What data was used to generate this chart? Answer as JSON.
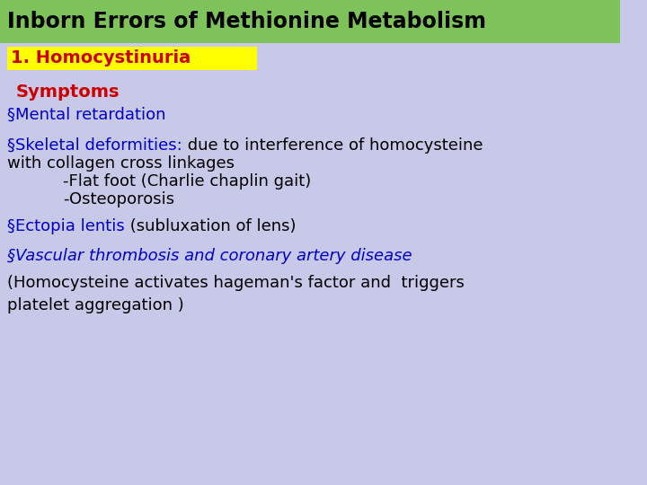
{
  "bg_color": "#c8c8e8",
  "title_text": "Inborn Errors of Methionine Metabolism",
  "title_bg": "#7dc35a",
  "title_color": "#000000",
  "subtitle_text": "1. Homocystinuria",
  "subtitle_bg": "#ffff00",
  "subtitle_color": "#cc0000",
  "symptoms_label": "Symptoms",
  "symptoms_color": "#cc0000",
  "line1_bullet": "§",
  "line1_text": "Mental retardation",
  "line1_color": "#0000cc",
  "line2_bullet": "§",
  "line2_text_blue": "Skeletal deformities:",
  "line2_text_black": " due to interference of homocysteine",
  "line2_color_blue": "#0000cc",
  "line2_color_black": "#000000",
  "line3_text": "with collagen cross linkages",
  "line3_color": "#000000",
  "line4_text": "-Flat foot (Charlie chaplin gait)",
  "line4_color": "#000000",
  "line5_text": "-Osteoporosis",
  "line5_color": "#000000",
  "line6_bullet": "§",
  "line6_text_blue": "Ectopia lentis",
  "line6_text_black": " (subluxation of lens)",
  "line6_color_blue": "#0000cc",
  "line6_color_black": "#000000",
  "line7_bullet": "§",
  "line7_text": "Vascular thrombosis and coronary artery disease",
  "line7_color": "#0000cc",
  "line8_text": "(Homocysteine activates hageman's factor and  triggers",
  "line8_color": "#000000",
  "line9_text": "platelet aggregation )",
  "line9_color": "#000000",
  "title_fontsize": 17,
  "subtitle_fontsize": 14,
  "body_fontsize": 13
}
